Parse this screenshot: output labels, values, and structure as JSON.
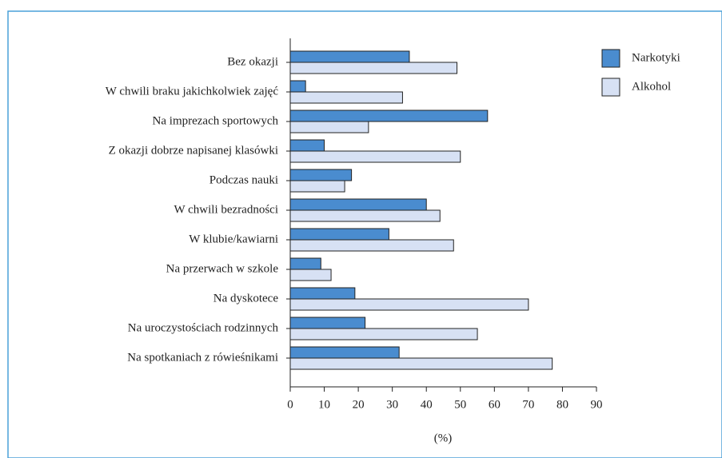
{
  "chart_data": {
    "type": "barh",
    "categories": [
      "Bez okazji",
      "W chwili braku jakichkolwiek zajęć",
      "Na imprezach sportowych",
      "Z okazji dobrze napisanej klasówki",
      "Podczas nauki",
      "W chwili bezradności",
      "W klubie/kawiarni",
      "Na przerwach w szkole",
      "Na dyskotece",
      "Na uroczystościach rodzinnych",
      "Na spotkaniach z rówieśnikami"
    ],
    "series": [
      {
        "name": "Narkotyki",
        "color": "#4a8ccf",
        "values": [
          35,
          4.5,
          58,
          10,
          18,
          40,
          29,
          9,
          19,
          22,
          32
        ]
      },
      {
        "name": "Alkohol",
        "color": "#d7e1f4",
        "values": [
          49,
          33,
          23,
          50,
          16,
          44,
          48,
          12,
          70,
          55,
          77
        ]
      }
    ],
    "xlabel": "(%)",
    "xlim": [
      0,
      90
    ],
    "xticks": [
      0,
      10,
      20,
      30,
      40,
      50,
      60,
      70,
      80,
      90
    ],
    "legend": "top-right"
  }
}
